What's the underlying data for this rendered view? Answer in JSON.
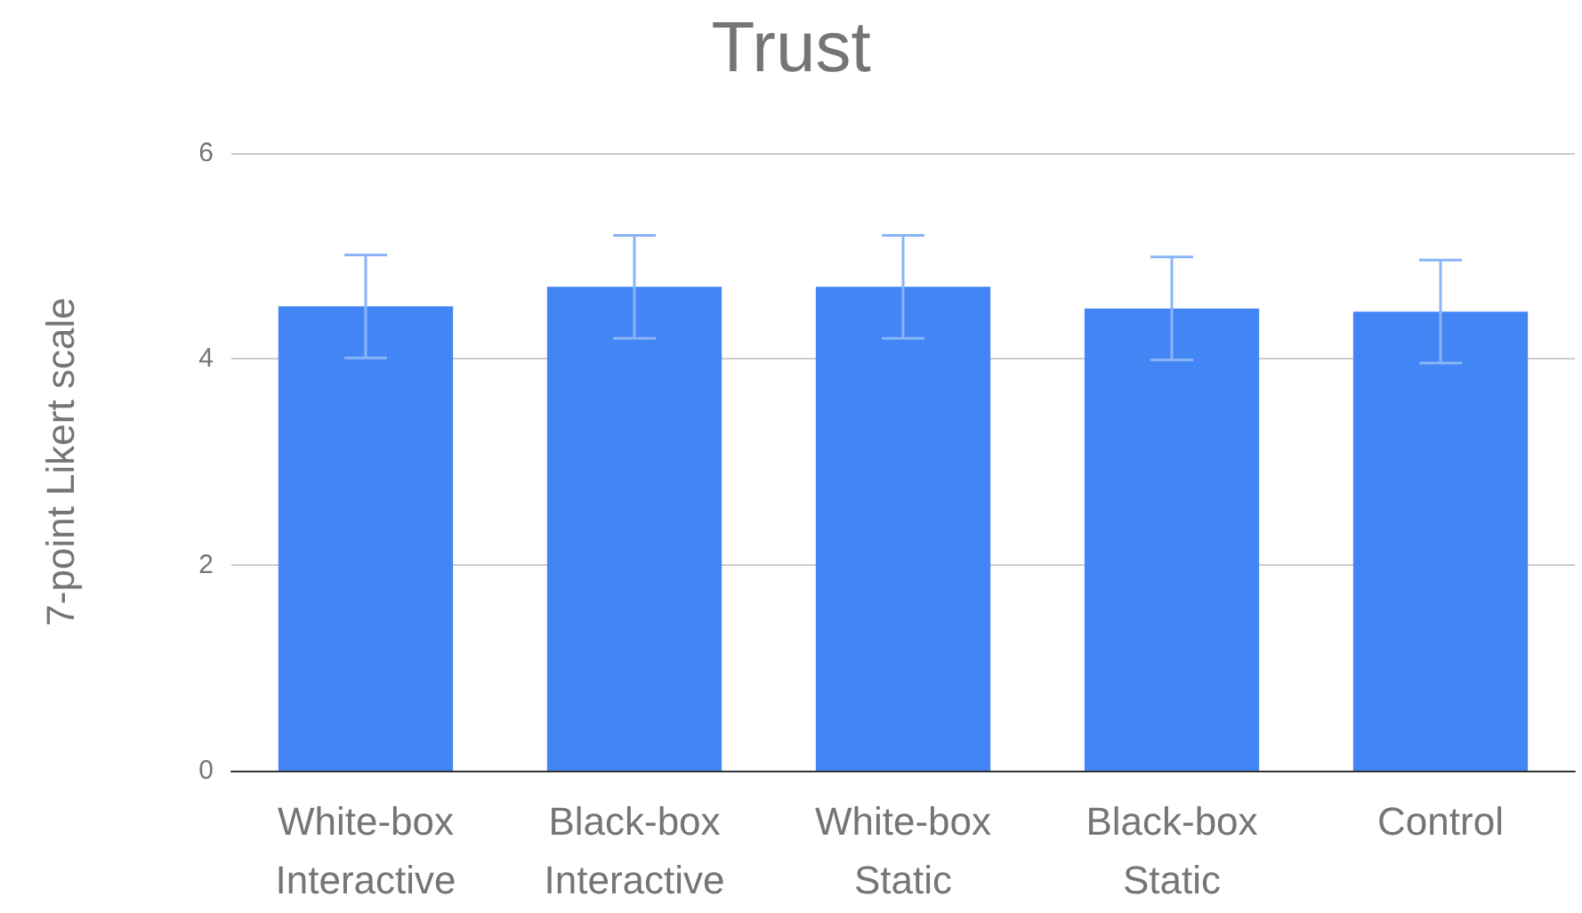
{
  "chart_data": {
    "type": "bar",
    "title": "Trust",
    "ylabel": "7-point Likert scale",
    "categories": [
      "White-box Interactive",
      "Black-box Interactive",
      "White-box Static",
      "Black-box Static",
      "Control"
    ],
    "values": [
      4.51,
      4.7,
      4.7,
      4.49,
      4.46
    ],
    "errors": [
      0.5,
      0.5,
      0.5,
      0.5,
      0.5
    ],
    "color": "#4285f4",
    "ylim": [
      0,
      6
    ],
    "yticks": [
      0,
      2,
      4,
      6
    ],
    "grid": "y"
  }
}
